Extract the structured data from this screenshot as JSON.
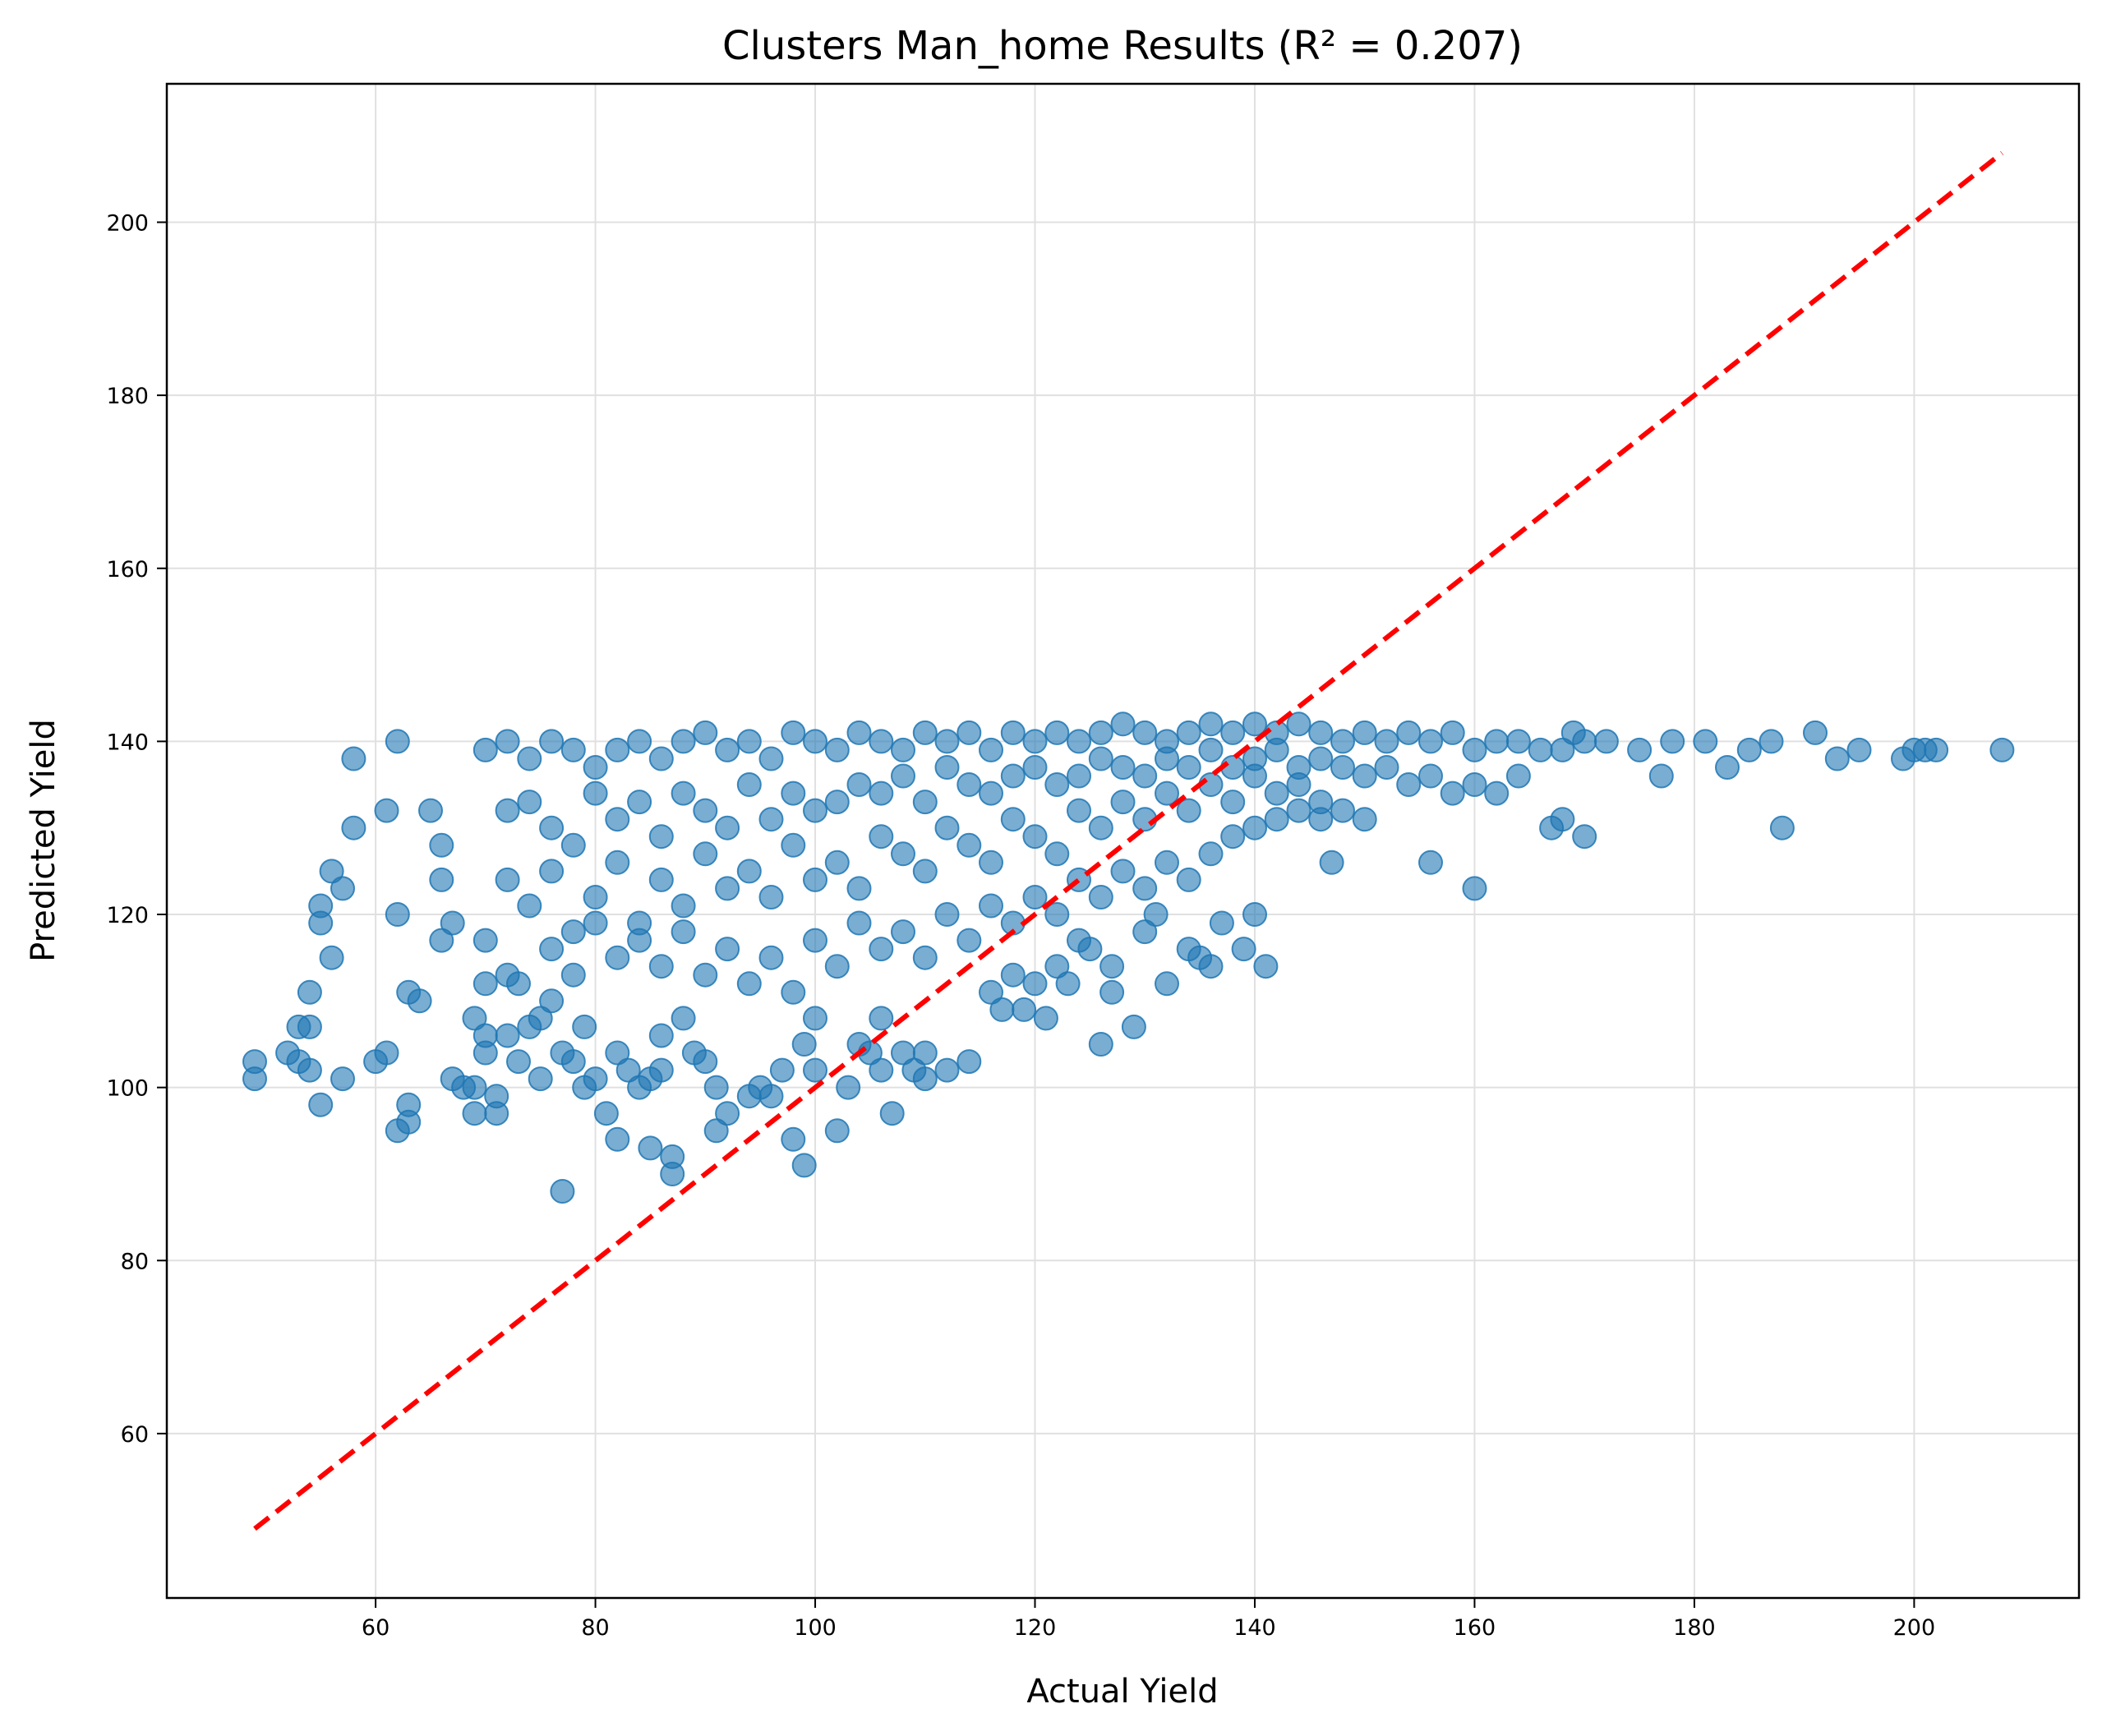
{
  "chart_data": {
    "type": "scatter",
    "title": "Clusters Man_home Results (R² = 0.207)",
    "xlabel": "Actual Yield",
    "ylabel": "Predicted Yield",
    "xlim": [
      41,
      215
    ],
    "ylim": [
      41,
      216
    ],
    "xticks": [
      60,
      80,
      100,
      120,
      140,
      160,
      180,
      200
    ],
    "yticks": [
      60,
      80,
      100,
      120,
      140,
      160,
      180,
      200
    ],
    "grid": true,
    "colors": {
      "points": "#1f77b4",
      "reference_line": "#ff0000",
      "grid": "#e0e0e0"
    },
    "series": [
      {
        "marker": "circle",
        "points": [
          [
            49,
            103
          ],
          [
            49,
            101
          ],
          [
            52,
            104
          ],
          [
            53,
            107
          ],
          [
            54,
            111
          ],
          [
            55,
            121
          ],
          [
            55,
            119
          ],
          [
            56,
            125
          ],
          [
            56,
            115
          ],
          [
            57,
            123
          ],
          [
            58,
            130
          ],
          [
            58,
            138
          ],
          [
            55,
            98
          ],
          [
            54,
            107
          ],
          [
            53,
            103
          ],
          [
            54,
            102
          ],
          [
            57,
            101
          ],
          [
            60,
            103
          ],
          [
            61,
            104
          ],
          [
            61,
            132
          ],
          [
            62,
            140
          ],
          [
            63,
            111
          ],
          [
            64,
            110
          ],
          [
            62,
            120
          ],
          [
            63,
            98
          ],
          [
            63,
            96
          ],
          [
            62,
            95
          ],
          [
            65,
            132
          ],
          [
            66,
            128
          ],
          [
            66,
            124
          ],
          [
            66,
            117
          ],
          [
            67,
            119
          ],
          [
            67,
            101
          ],
          [
            68,
            100
          ],
          [
            69,
            100
          ],
          [
            69,
            108
          ],
          [
            69,
            97
          ],
          [
            70,
            104
          ],
          [
            70,
            106
          ],
          [
            70,
            112
          ],
          [
            70,
            117
          ],
          [
            71,
            97
          ],
          [
            71,
            99
          ],
          [
            72,
            106
          ],
          [
            72,
            113
          ],
          [
            73,
            103
          ],
          [
            73,
            112
          ],
          [
            74,
            107
          ],
          [
            75,
            101
          ],
          [
            75,
            108
          ],
          [
            76,
            110
          ],
          [
            77,
            104
          ],
          [
            77,
            88
          ],
          [
            78,
            103
          ],
          [
            79,
            100
          ],
          [
            79,
            107
          ],
          [
            80,
            101
          ],
          [
            81,
            97
          ],
          [
            82,
            94
          ],
          [
            82,
            104
          ],
          [
            83,
            102
          ],
          [
            84,
            100
          ],
          [
            85,
            93
          ],
          [
            85,
            101
          ],
          [
            86,
            102
          ],
          [
            86,
            106
          ],
          [
            87,
            92
          ],
          [
            87,
            90
          ],
          [
            88,
            108
          ],
          [
            89,
            104
          ],
          [
            90,
            103
          ],
          [
            91,
            95
          ],
          [
            91,
            100
          ],
          [
            92,
            97
          ],
          [
            94,
            99
          ],
          [
            95,
            100
          ],
          [
            96,
            99
          ],
          [
            97,
            102
          ],
          [
            98,
            94
          ],
          [
            99,
            91
          ],
          [
            99,
            105
          ],
          [
            100,
            102
          ],
          [
            100,
            108
          ],
          [
            102,
            95
          ],
          [
            103,
            100
          ],
          [
            104,
            105
          ],
          [
            105,
            104
          ],
          [
            106,
            108
          ],
          [
            106,
            102
          ],
          [
            107,
            97
          ],
          [
            108,
            104
          ],
          [
            109,
            102
          ],
          [
            110,
            101
          ],
          [
            110,
            104
          ],
          [
            112,
            102
          ],
          [
            114,
            103
          ],
          [
            116,
            111
          ],
          [
            117,
            109
          ],
          [
            118,
            113
          ],
          [
            119,
            109
          ],
          [
            120,
            112
          ],
          [
            121,
            108
          ],
          [
            122,
            114
          ],
          [
            123,
            112
          ],
          [
            124,
            117
          ],
          [
            125,
            116
          ],
          [
            126,
            105
          ],
          [
            127,
            114
          ],
          [
            127,
            111
          ],
          [
            129,
            107
          ],
          [
            130,
            118
          ],
          [
            131,
            120
          ],
          [
            132,
            112
          ],
          [
            134,
            116
          ],
          [
            135,
            115
          ],
          [
            136,
            114
          ],
          [
            137,
            119
          ],
          [
            139,
            116
          ],
          [
            140,
            120
          ],
          [
            141,
            114
          ],
          [
            147,
            126
          ],
          [
            156,
            126
          ],
          [
            160,
            123
          ],
          [
            167,
            130
          ],
          [
            168,
            131
          ],
          [
            170,
            129
          ],
          [
            177,
            136
          ],
          [
            183,
            137
          ],
          [
            188,
            130
          ],
          [
            191,
            141
          ],
          [
            193,
            138
          ],
          [
            195,
            139
          ],
          [
            199,
            138
          ],
          [
            200,
            139
          ],
          [
            201,
            139
          ],
          [
            202,
            139
          ],
          [
            208,
            139
          ],
          [
            187,
            140
          ],
          [
            185,
            139
          ],
          [
            181,
            140
          ],
          [
            178,
            140
          ],
          [
            175,
            139
          ],
          [
            172,
            140
          ],
          [
            169,
            141
          ],
          [
            70,
            139
          ],
          [
            72,
            140
          ],
          [
            74,
            138
          ],
          [
            76,
            140
          ],
          [
            78,
            139
          ],
          [
            80,
            137
          ],
          [
            82,
            139
          ],
          [
            84,
            140
          ],
          [
            86,
            138
          ],
          [
            88,
            140
          ],
          [
            90,
            141
          ],
          [
            92,
            139
          ],
          [
            94,
            140
          ],
          [
            96,
            138
          ],
          [
            98,
            141
          ],
          [
            100,
            140
          ],
          [
            102,
            139
          ],
          [
            104,
            141
          ],
          [
            106,
            140
          ],
          [
            108,
            139
          ],
          [
            110,
            141
          ],
          [
            112,
            140
          ],
          [
            114,
            141
          ],
          [
            116,
            139
          ],
          [
            118,
            141
          ],
          [
            120,
            140
          ],
          [
            122,
            141
          ],
          [
            124,
            140
          ],
          [
            126,
            141
          ],
          [
            128,
            142
          ],
          [
            130,
            141
          ],
          [
            132,
            140
          ],
          [
            134,
            141
          ],
          [
            136,
            142
          ],
          [
            138,
            141
          ],
          [
            140,
            142
          ],
          [
            142,
            141
          ],
          [
            144,
            142
          ],
          [
            146,
            141
          ],
          [
            148,
            140
          ],
          [
            150,
            141
          ],
          [
            152,
            140
          ],
          [
            154,
            141
          ],
          [
            156,
            140
          ],
          [
            158,
            141
          ],
          [
            160,
            139
          ],
          [
            162,
            140
          ],
          [
            164,
            140
          ],
          [
            166,
            139
          ],
          [
            168,
            139
          ],
          [
            170,
            140
          ],
          [
            72,
            132
          ],
          [
            74,
            133
          ],
          [
            76,
            130
          ],
          [
            78,
            128
          ],
          [
            80,
            134
          ],
          [
            82,
            131
          ],
          [
            84,
            133
          ],
          [
            86,
            129
          ],
          [
            88,
            134
          ],
          [
            90,
            132
          ],
          [
            92,
            130
          ],
          [
            94,
            135
          ],
          [
            96,
            131
          ],
          [
            98,
            134
          ],
          [
            100,
            132
          ],
          [
            102,
            133
          ],
          [
            104,
            135
          ],
          [
            106,
            134
          ],
          [
            108,
            136
          ],
          [
            110,
            133
          ],
          [
            112,
            137
          ],
          [
            114,
            135
          ],
          [
            116,
            134
          ],
          [
            118,
            136
          ],
          [
            120,
            137
          ],
          [
            122,
            135
          ],
          [
            124,
            136
          ],
          [
            126,
            138
          ],
          [
            128,
            137
          ],
          [
            130,
            136
          ],
          [
            132,
            138
          ],
          [
            134,
            137
          ],
          [
            136,
            139
          ],
          [
            138,
            137
          ],
          [
            140,
            138
          ],
          [
            142,
            139
          ],
          [
            144,
            137
          ],
          [
            146,
            138
          ],
          [
            148,
            137
          ],
          [
            150,
            136
          ],
          [
            152,
            137
          ],
          [
            154,
            135
          ],
          [
            156,
            136
          ],
          [
            158,
            134
          ],
          [
            160,
            135
          ],
          [
            162,
            134
          ],
          [
            164,
            136
          ],
          [
            72,
            124
          ],
          [
            74,
            121
          ],
          [
            76,
            125
          ],
          [
            78,
            118
          ],
          [
            80,
            122
          ],
          [
            82,
            126
          ],
          [
            84,
            119
          ],
          [
            86,
            124
          ],
          [
            88,
            121
          ],
          [
            90,
            127
          ],
          [
            92,
            123
          ],
          [
            94,
            125
          ],
          [
            96,
            122
          ],
          [
            98,
            128
          ],
          [
            100,
            124
          ],
          [
            102,
            126
          ],
          [
            104,
            123
          ],
          [
            106,
            129
          ],
          [
            108,
            127
          ],
          [
            110,
            125
          ],
          [
            112,
            130
          ],
          [
            114,
            128
          ],
          [
            116,
            126
          ],
          [
            118,
            131
          ],
          [
            120,
            129
          ],
          [
            122,
            127
          ],
          [
            124,
            132
          ],
          [
            126,
            130
          ],
          [
            128,
            133
          ],
          [
            130,
            131
          ],
          [
            132,
            134
          ],
          [
            134,
            132
          ],
          [
            136,
            135
          ],
          [
            138,
            133
          ],
          [
            140,
            136
          ],
          [
            142,
            134
          ],
          [
            144,
            135
          ],
          [
            146,
            133
          ],
          [
            148,
            132
          ],
          [
            150,
            131
          ],
          [
            76,
            116
          ],
          [
            78,
            113
          ],
          [
            80,
            119
          ],
          [
            82,
            115
          ],
          [
            84,
            117
          ],
          [
            86,
            114
          ],
          [
            88,
            118
          ],
          [
            90,
            113
          ],
          [
            92,
            116
          ],
          [
            94,
            112
          ],
          [
            96,
            115
          ],
          [
            98,
            111
          ],
          [
            100,
            117
          ],
          [
            102,
            114
          ],
          [
            104,
            119
          ],
          [
            106,
            116
          ],
          [
            108,
            118
          ],
          [
            110,
            115
          ],
          [
            112,
            120
          ],
          [
            114,
            117
          ],
          [
            116,
            121
          ],
          [
            118,
            119
          ],
          [
            120,
            122
          ],
          [
            122,
            120
          ],
          [
            124,
            124
          ],
          [
            126,
            122
          ],
          [
            128,
            125
          ],
          [
            130,
            123
          ],
          [
            132,
            126
          ],
          [
            134,
            124
          ],
          [
            136,
            127
          ],
          [
            138,
            129
          ],
          [
            140,
            130
          ],
          [
            142,
            131
          ],
          [
            144,
            132
          ],
          [
            146,
            131
          ]
        ]
      }
    ],
    "reference_line": {
      "style": "dashed",
      "x": [
        49,
        208
      ],
      "y": [
        49,
        208
      ]
    }
  }
}
